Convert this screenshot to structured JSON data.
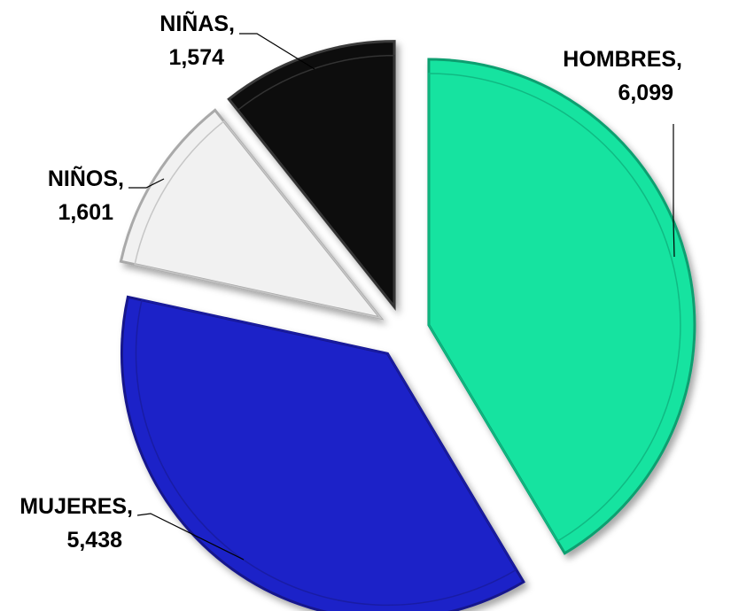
{
  "chart_data": {
    "type": "pie",
    "exploded": true,
    "slices": [
      {
        "name": "HOMBRES",
        "value": 6099,
        "value_label": "6,099",
        "color": "#14e3a0"
      },
      {
        "name": "MUJERES",
        "value": 5438,
        "value_label": "5,438",
        "color": "#1f22c8"
      },
      {
        "name": "NIÑOS",
        "value": 1601,
        "value_label": "1,601",
        "color": "#f1f1f1"
      },
      {
        "name": "NIÑAS",
        "value": 1574,
        "value_label": "1,574",
        "color": "#0a0a0a"
      }
    ],
    "legend": "none",
    "grid": false
  }
}
